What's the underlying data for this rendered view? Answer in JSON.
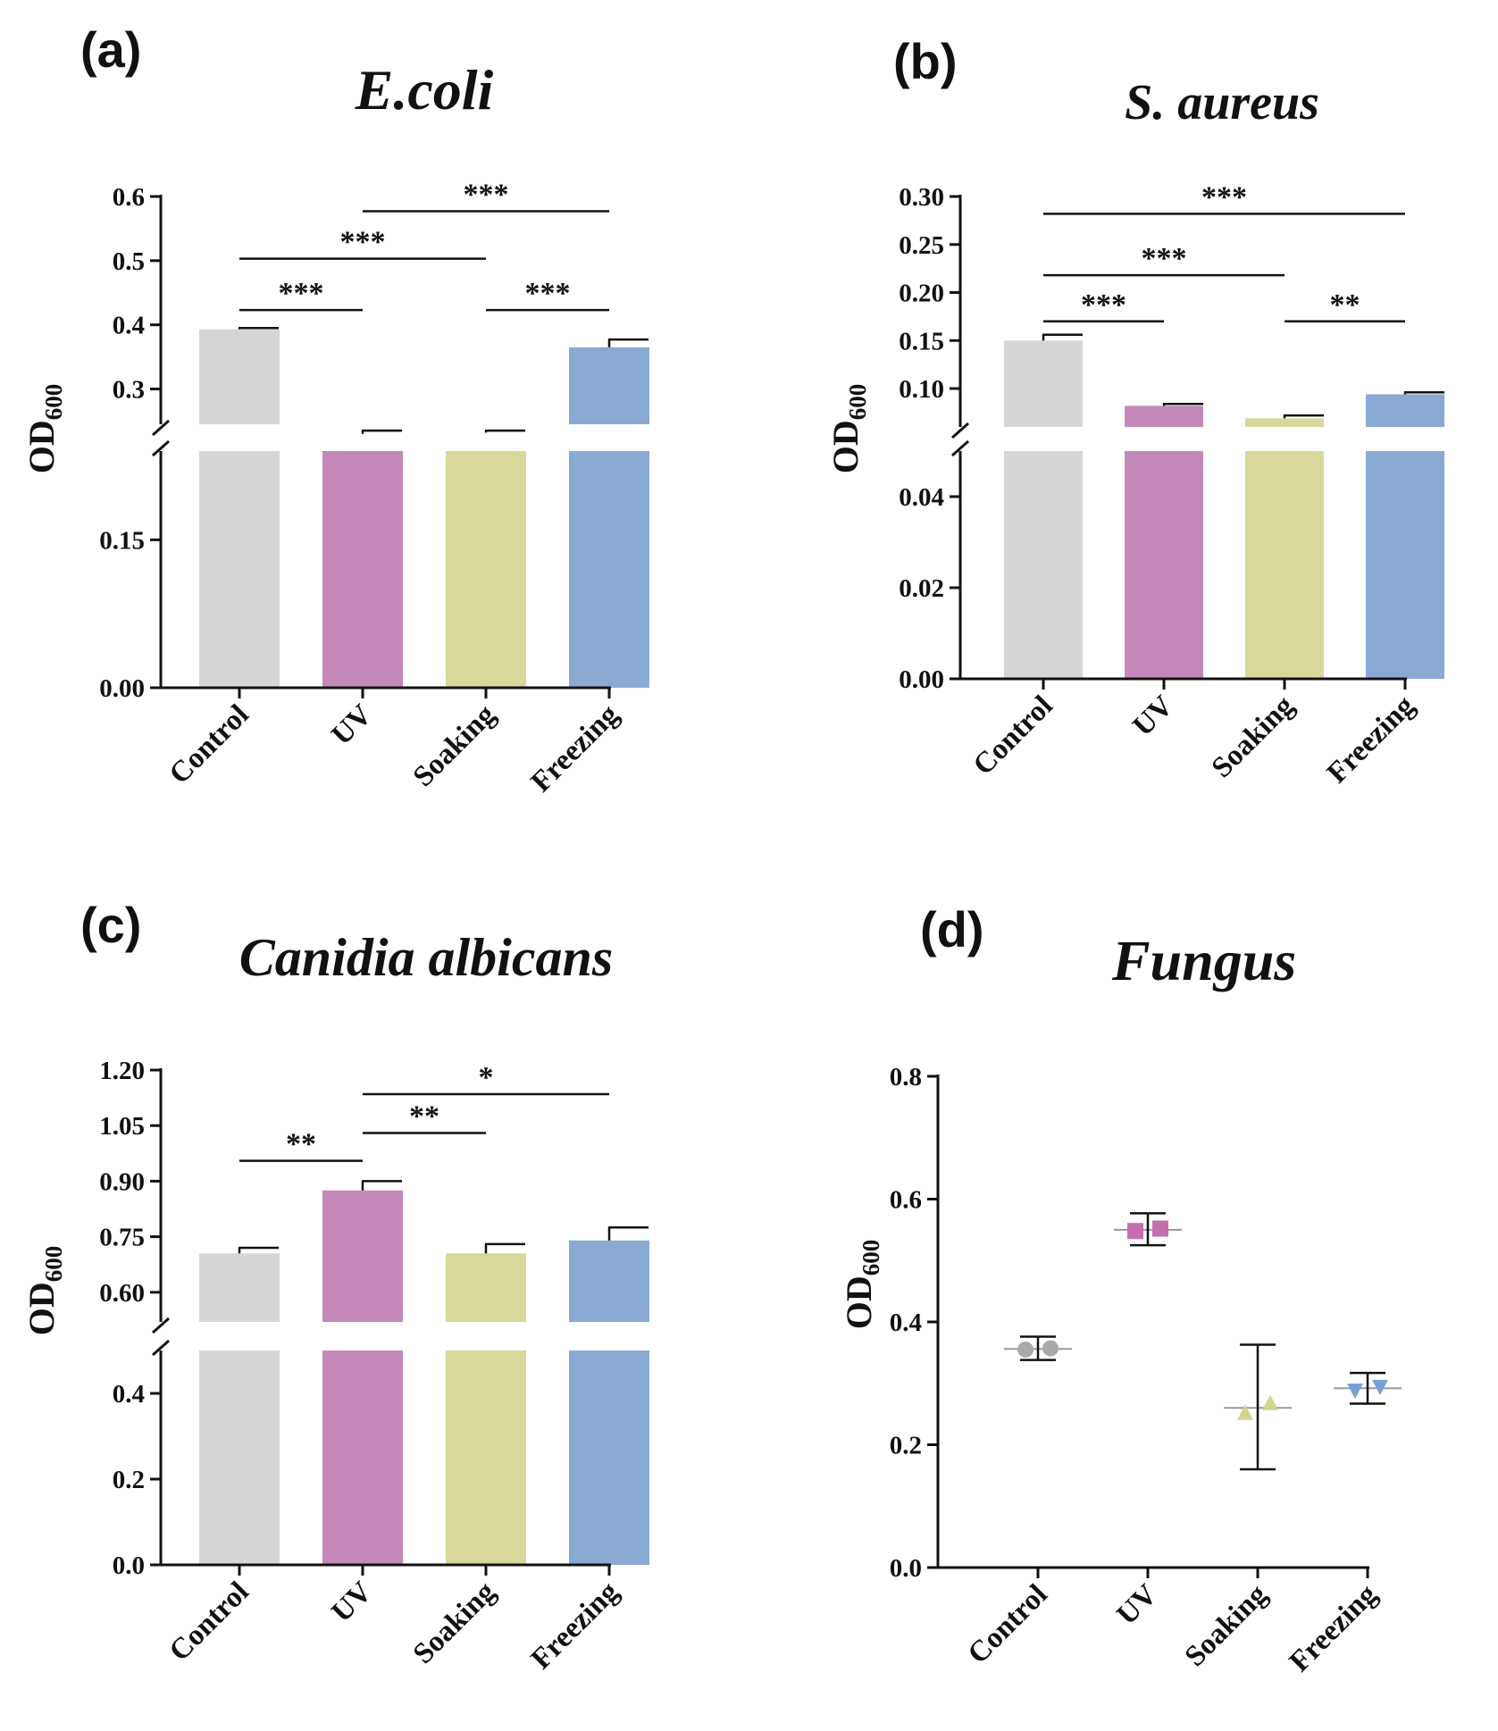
{
  "chart_data": [
    {
      "panel": "(a)",
      "title": "E.coli",
      "type": "bar",
      "ylabel": "OD",
      "ylabel_sub": "600",
      "categories": [
        "Control",
        "UV",
        "Soaking",
        "Freezing"
      ],
      "colors": [
        "#d6d6d6",
        "#c489b8",
        "#d8d89a",
        "#8aaad4"
      ],
      "values": [
        0.393,
        0.23,
        0.232,
        0.365
      ],
      "errors": [
        0.002,
        0.005,
        0.003,
        0.012
      ],
      "broken_axis": {
        "lower_range": [
          0.0,
          0.24
        ],
        "lower_ticks": [
          "0.00",
          "0.15"
        ],
        "lower_tick_values": [
          0.0,
          0.15
        ],
        "upper_range": [
          0.245,
          0.6
        ],
        "upper_ticks": [
          "0.3",
          "0.4",
          "0.5",
          "0.6"
        ],
        "upper_tick_values": [
          0.3,
          0.4,
          0.5,
          0.6
        ]
      },
      "significance": [
        {
          "from": 0,
          "to": 1,
          "label": "***",
          "level": 0.423
        },
        {
          "from": 0,
          "to": 2,
          "label": "***",
          "level": 0.503
        },
        {
          "from": 1,
          "to": 3,
          "label": "***",
          "level": 0.577
        },
        {
          "from": 2,
          "to": 3,
          "label": "***",
          "level": 0.423
        }
      ]
    },
    {
      "panel": "(b)",
      "title": "S. aureus",
      "type": "bar",
      "ylabel": "OD",
      "ylabel_sub": "600",
      "categories": [
        "Control",
        "UV",
        "Soaking",
        "Freezing"
      ],
      "colors": [
        "#d6d6d6",
        "#c489b8",
        "#d8d89a",
        "#8aaad4"
      ],
      "values": [
        0.15,
        0.082,
        0.069,
        0.094
      ],
      "errors": [
        0.006,
        0.002,
        0.003,
        0.002
      ],
      "broken_axis": {
        "lower_range": [
          0.0,
          0.05
        ],
        "lower_ticks": [
          "0.00",
          "0.02",
          "0.04"
        ],
        "lower_tick_values": [
          0.0,
          0.02,
          0.04
        ],
        "upper_range": [
          0.06,
          0.3
        ],
        "upper_ticks": [
          "0.10",
          "0.15",
          "0.20",
          "0.25",
          "0.30"
        ],
        "upper_tick_values": [
          0.1,
          0.15,
          0.2,
          0.25,
          0.3
        ]
      },
      "significance": [
        {
          "from": 0,
          "to": 1,
          "label": "***",
          "level": 0.17
        },
        {
          "from": 0,
          "to": 2,
          "label": "***",
          "level": 0.218
        },
        {
          "from": 0,
          "to": 3,
          "label": "***",
          "level": 0.282
        },
        {
          "from": 2,
          "to": 3,
          "label": "**",
          "level": 0.17
        }
      ]
    },
    {
      "panel": "(c)",
      "title": "Canidia albicans",
      "type": "bar",
      "ylabel": "OD",
      "ylabel_sub": "600",
      "categories": [
        "Control",
        "UV",
        "Soaking",
        "Freezing"
      ],
      "colors": [
        "#d6d6d6",
        "#c489b8",
        "#d8d89a",
        "#8aaad4"
      ],
      "values": [
        0.705,
        0.875,
        0.705,
        0.74
      ],
      "errors": [
        0.015,
        0.025,
        0.025,
        0.035
      ],
      "broken_axis": {
        "lower_range": [
          0.0,
          0.5
        ],
        "lower_ticks": [
          "0.0",
          "0.2",
          "0.4"
        ],
        "lower_tick_values": [
          0.0,
          0.2,
          0.4
        ],
        "upper_range": [
          0.52,
          1.2
        ],
        "upper_ticks": [
          "0.60",
          "0.75",
          "0.90",
          "1.05",
          "1.20"
        ],
        "upper_tick_values": [
          0.6,
          0.75,
          0.9,
          1.05,
          1.2
        ]
      },
      "significance": [
        {
          "from": 0,
          "to": 1,
          "label": "**",
          "level": 0.955
        },
        {
          "from": 1,
          "to": 2,
          "label": "**",
          "level": 1.03
        },
        {
          "from": 1,
          "to": 3,
          "label": "*",
          "level": 1.135
        }
      ]
    },
    {
      "panel": "(d)",
      "title": "Fungus",
      "type": "scatter",
      "ylabel": "OD",
      "ylabel_sub": "600",
      "categories": [
        "Control",
        "UV",
        "Soaking",
        "Freezing"
      ],
      "colors": [
        "#a9a9a9",
        "#c36fae",
        "#d4d48a",
        "#7a9fd8"
      ],
      "markers": [
        "circle",
        "square",
        "triangle-up",
        "triangle-down"
      ],
      "points": [
        [
          0.355,
          0.357
        ],
        [
          0.548,
          0.552
        ],
        [
          0.252,
          0.268
        ],
        [
          0.288,
          0.294
        ]
      ],
      "means": [
        0.356,
        0.55,
        0.26,
        0.292
      ],
      "err_low": [
        0.338,
        0.525,
        0.16,
        0.267
      ],
      "err_high": [
        0.376,
        0.577,
        0.363,
        0.317
      ],
      "ylim": [
        0.0,
        0.8
      ],
      "ticks": [
        "0.0",
        "0.2",
        "0.4",
        "0.6",
        "0.8"
      ],
      "tick_values": [
        0.0,
        0.2,
        0.4,
        0.6,
        0.8
      ]
    }
  ]
}
